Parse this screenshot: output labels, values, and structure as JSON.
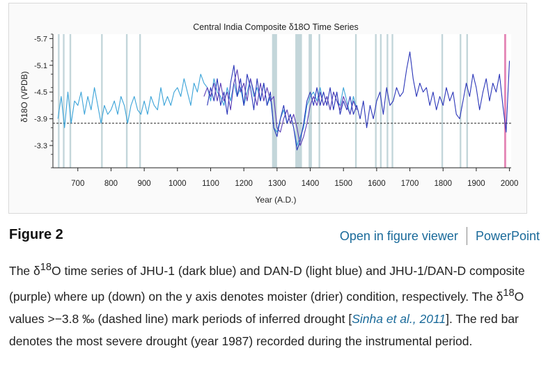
{
  "figure": {
    "label": "Figure 2",
    "open_viewer_label": "Open in figure viewer",
    "powerpoint_label": "PowerPoint"
  },
  "caption": {
    "p1": "The δ",
    "sup1": "18",
    "p2": "O time series of JHU-1 (dark blue) and DAN-D (light blue) and JHU-1/DAN-D composite (purple) where up (down) on the y axis denotes moister (drier) condition, respectively. The δ",
    "sup2": "18",
    "p3": "O values >−3.8 ‰ (dashed line) mark periods of inferred drought [",
    "cite": "Sinha et al., 2011",
    "p4": "]. The red bar denotes the most severe drought (year 1987) recorded during the instrumental period."
  },
  "chart_data": {
    "type": "line",
    "title": "Central India Composite δ18O Time Series",
    "xlabel": "Year (A.D.)",
    "ylabel": "δ18O (VPDB)",
    "xlim": [
      625,
      2005
    ],
    "ylim": [
      -2.8,
      -5.8
    ],
    "y_inverted": true,
    "x_ticks": [
      700,
      800,
      900,
      1000,
      1100,
      1200,
      1300,
      1400,
      1500,
      1600,
      1700,
      1800,
      1900,
      2000
    ],
    "y_ticks": [
      -5.7,
      -5.1,
      -4.5,
      -3.9,
      -3.3
    ],
    "drought_threshold": -3.8,
    "drought_bands": [
      [
        640,
        645
      ],
      [
        655,
        660
      ],
      [
        675,
        680
      ],
      [
        770,
        775
      ],
      [
        845,
        850
      ],
      [
        885,
        890
      ],
      [
        1285,
        1300
      ],
      [
        1355,
        1375
      ],
      [
        1395,
        1405
      ],
      [
        1425,
        1430
      ],
      [
        1535,
        1540
      ],
      [
        1595,
        1600
      ],
      [
        1610,
        1615
      ],
      [
        1630,
        1635
      ],
      [
        1645,
        1650
      ],
      [
        1795,
        1800
      ],
      [
        1850,
        1855
      ],
      [
        1870,
        1875
      ]
    ],
    "severe_drought_year": 1987,
    "colors": {
      "dark_blue": "#2a35b8",
      "light_blue": "#3aa3d8",
      "purple": "#5a3cb5",
      "band": "#b8cfd4",
      "severe": "#e58ab8"
    },
    "series": [
      {
        "name": "DAN-D",
        "x": [
          640,
          650,
          660,
          670,
          680,
          690,
          700,
          710,
          720,
          730,
          740,
          750,
          760,
          770,
          780,
          790,
          800,
          810,
          820,
          830,
          840,
          850,
          860,
          870,
          880,
          890,
          900,
          910,
          920,
          930,
          940,
          950,
          960,
          970,
          980,
          990,
          1000,
          1010,
          1020,
          1030,
          1040,
          1050,
          1060,
          1070,
          1080,
          1090,
          1100,
          1110,
          1120,
          1130,
          1140,
          1150,
          1160,
          1170,
          1180,
          1190,
          1200,
          1210,
          1220,
          1230,
          1240,
          1250,
          1260,
          1270,
          1280,
          1290,
          1300,
          1310,
          1320,
          1330,
          1340,
          1350,
          1360,
          1370,
          1380,
          1390,
          1400,
          1410,
          1420,
          1430,
          1440,
          1450,
          1460,
          1470,
          1480,
          1490,
          1500,
          1510,
          1520,
          1530,
          1540
        ],
        "y": [
          -3.9,
          -4.4,
          -3.7,
          -4.5,
          -3.8,
          -4.3,
          -4.2,
          -4.5,
          -4.0,
          -4.4,
          -4.1,
          -4.6,
          -4.2,
          -3.8,
          -4.2,
          -4.0,
          -4.1,
          -4.3,
          -4.0,
          -4.4,
          -4.2,
          -3.8,
          -4.2,
          -4.4,
          -4.1,
          -4.0,
          -4.3,
          -4.0,
          -4.4,
          -4.2,
          -4.1,
          -4.6,
          -4.2,
          -4.4,
          -4.2,
          -4.5,
          -4.6,
          -4.4,
          -4.8,
          -4.5,
          -4.2,
          -4.7,
          -4.5,
          -4.9,
          -4.7,
          -4.6,
          -4.3,
          -4.8,
          -4.5,
          -4.4,
          -4.2,
          -4.6,
          -4.3,
          -4.7,
          -4.4,
          -4.6,
          -4.2,
          -4.5,
          -4.8,
          -4.4,
          -4.6,
          -4.3,
          -4.7,
          -4.2,
          -4.4,
          -3.7,
          -3.6,
          -3.9,
          -4.1,
          -3.8,
          -4.0,
          -3.7,
          -3.3,
          -3.5,
          -3.7,
          -4.2,
          -4.4,
          -4.5,
          -4.3,
          -4.6,
          -4.2,
          -4.4,
          -4.1,
          -4.5,
          -4.3,
          -4.2,
          -4.6,
          -4.3,
          -4.0,
          -4.4,
          -4.1
        ]
      },
      {
        "name": "JHU-1",
        "x": [
          1090,
          1100,
          1110,
          1120,
          1130,
          1140,
          1150,
          1160,
          1170,
          1180,
          1190,
          1200,
          1210,
          1220,
          1230,
          1240,
          1250,
          1260,
          1270,
          1280,
          1290,
          1300,
          1310,
          1320,
          1330,
          1340,
          1350,
          1360,
          1370,
          1380,
          1390,
          1400,
          1410,
          1420,
          1430,
          1440,
          1450,
          1460,
          1470,
          1480,
          1490,
          1500,
          1510,
          1520,
          1530,
          1540,
          1550,
          1560,
          1570,
          1580,
          1590,
          1600,
          1610,
          1620,
          1630,
          1640,
          1650,
          1660,
          1670,
          1680,
          1690,
          1700,
          1710,
          1720,
          1730,
          1740,
          1750,
          1760,
          1770,
          1780,
          1790,
          1800,
          1810,
          1820,
          1830,
          1840,
          1850,
          1860,
          1870,
          1880,
          1890,
          1900,
          1910,
          1920,
          1930,
          1940,
          1950,
          1960,
          1970,
          1980,
          1990,
          2000
        ],
        "y": [
          -4.2,
          -4.6,
          -4.3,
          -4.8,
          -4.2,
          -4.5,
          -4.0,
          -4.7,
          -5.1,
          -4.4,
          -4.8,
          -4.2,
          -4.9,
          -4.6,
          -4.1,
          -4.8,
          -4.3,
          -4.7,
          -4.2,
          -4.5,
          -3.7,
          -3.5,
          -3.9,
          -4.2,
          -3.8,
          -4.0,
          -3.7,
          -3.2,
          -3.4,
          -3.8,
          -4.3,
          -4.5,
          -4.2,
          -4.6,
          -4.2,
          -4.5,
          -4.2,
          -4.6,
          -4.1,
          -4.5,
          -4.0,
          -4.3,
          -4.1,
          -4.4,
          -4.0,
          -4.2,
          -3.9,
          -4.3,
          -3.7,
          -4.2,
          -3.9,
          -4.3,
          -4.5,
          -4.0,
          -4.6,
          -4.2,
          -4.3,
          -4.6,
          -4.4,
          -4.5,
          -5.0,
          -5.4,
          -4.8,
          -4.4,
          -4.7,
          -4.5,
          -4.6,
          -4.2,
          -4.5,
          -4.1,
          -4.4,
          -4.2,
          -4.6,
          -4.3,
          -4.5,
          -4.0,
          -3.9,
          -4.3,
          -4.7,
          -4.4,
          -4.9,
          -4.6,
          -4.1,
          -4.5,
          -4.8,
          -4.3,
          -4.7,
          -4.5,
          -4.9,
          -4.2,
          -3.6,
          -5.2
        ]
      },
      {
        "name": "JHU-1/DAN-D composite",
        "x": [
          1080,
          1090,
          1100,
          1110,
          1120,
          1130,
          1140,
          1150,
          1160,
          1170,
          1180,
          1190,
          1200,
          1210,
          1220,
          1230,
          1240,
          1250,
          1260,
          1270,
          1280,
          1290,
          1300,
          1310,
          1320,
          1330,
          1340,
          1350,
          1360,
          1370,
          1380,
          1390,
          1400,
          1410,
          1420,
          1430,
          1440,
          1450,
          1460,
          1470,
          1480,
          1490,
          1500,
          1510,
          1520,
          1530,
          1540
        ],
        "y": [
          -4.4,
          -4.6,
          -4.4,
          -4.7,
          -4.3,
          -4.7,
          -4.3,
          -4.5,
          -4.1,
          -4.7,
          -5.0,
          -4.5,
          -4.7,
          -4.3,
          -4.8,
          -4.5,
          -4.2,
          -4.7,
          -4.3,
          -4.6,
          -4.3,
          -4.4,
          -3.7,
          -3.6,
          -3.9,
          -4.1,
          -3.8,
          -4.0,
          -3.7,
          -3.3,
          -3.5,
          -3.8,
          -4.2,
          -4.4,
          -4.2,
          -4.5,
          -4.2,
          -4.4,
          -4.1,
          -4.5,
          -4.3,
          -4.1,
          -4.4,
          -4.2,
          -4.0,
          -4.3,
          -4.1
        ]
      }
    ]
  }
}
